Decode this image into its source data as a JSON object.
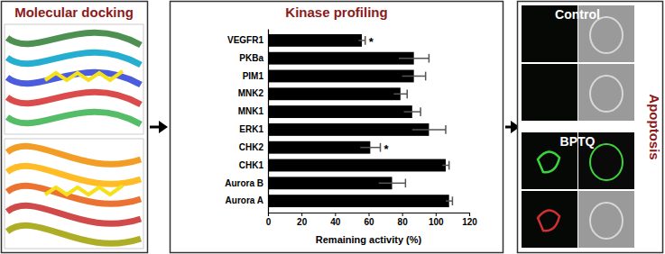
{
  "figure": {
    "left_title": "Molecular docking",
    "right_control": "Control",
    "right_treated": "BPTQ",
    "right_title": "Apoptosis"
  },
  "chart_data": {
    "type": "bar",
    "title": "Kinase profiling",
    "orientation": "horizontal",
    "categories": [
      "VEGFR1",
      "PKBa",
      "PIM1",
      "MNK2",
      "MNK1",
      "ERK1",
      "CHK2",
      "CHK1",
      "Aurora B",
      "Aurora A"
    ],
    "values": [
      56,
      87,
      87,
      79,
      86,
      96,
      61,
      106,
      74,
      108
    ],
    "errors": [
      2,
      9,
      7,
      4,
      5,
      10,
      6,
      2,
      8,
      2
    ],
    "color": "#000000",
    "xlim": [
      0,
      120
    ],
    "xticks": [
      0,
      20,
      40,
      60,
      80,
      100,
      120
    ],
    "x_label": "Remaining activity (%)",
    "annotations": [
      {
        "text": "*",
        "category": "VEGFR1"
      },
      {
        "text": "*",
        "category": "CHK2"
      }
    ]
  }
}
